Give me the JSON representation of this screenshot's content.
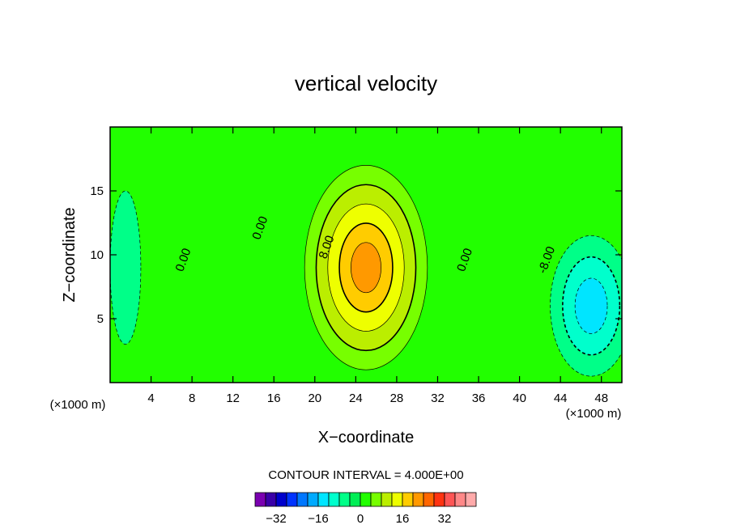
{
  "chart_data": {
    "type": "contour",
    "title": "vertical velocity",
    "xlabel": "X−coordinate",
    "ylabel": "Z−coordinate",
    "x_unit_left": "(×1000 m)",
    "x_unit_right": "(×1000 m)",
    "xlim": [
      0,
      50
    ],
    "ylim": [
      0,
      20
    ],
    "x_ticks": [
      4,
      8,
      12,
      16,
      20,
      24,
      28,
      32,
      36,
      40,
      44,
      48
    ],
    "x_tick_labels": [
      "4",
      "8",
      "12",
      "16",
      "20",
      "24",
      "28",
      "32",
      "36",
      "40",
      "44",
      "48"
    ],
    "y_ticks": [
      5,
      10,
      15
    ],
    "y_tick_labels": [
      "5",
      "10",
      "15"
    ],
    "background_value": 0,
    "features": [
      {
        "kind": "updraft",
        "x_center": 25,
        "z_center": 9,
        "x_halfwidth": 6,
        "z_halfwidth": 8,
        "peak": 20
      },
      {
        "kind": "downdraft",
        "x_center": 47,
        "z_center": 6,
        "x_halfwidth": 4,
        "z_halfwidth": 5.5,
        "peak": -12
      },
      {
        "kind": "weak_downdraft",
        "x_center": 1.5,
        "z_center": 9,
        "x_halfwidth": 1.5,
        "z_halfwidth": 6,
        "peak": -4
      }
    ],
    "contour_labels": [
      {
        "text": "0.00",
        "x": 7.5,
        "z": 9.5
      },
      {
        "text": "0.00",
        "x": 15,
        "z": 12
      },
      {
        "text": "8.00",
        "x": 21.5,
        "z": 10.5
      },
      {
        "text": "0.00",
        "x": 35,
        "z": 9.5
      },
      {
        "text": "-8.00",
        "x": 43,
        "z": 9.5
      }
    ],
    "contour_interval_label": "CONTOUR INTERVAL = 4.000E+00",
    "colorbar": {
      "colors": [
        "#7a00b0",
        "#3a00a8",
        "#0000cc",
        "#0033ff",
        "#0077ff",
        "#00aaff",
        "#00e5ff",
        "#00ffcc",
        "#00ff88",
        "#00ee55",
        "#22ff00",
        "#77ff00",
        "#bbee00",
        "#eeff00",
        "#ffcc00",
        "#ff9900",
        "#ff6600",
        "#ff3311",
        "#ff5555",
        "#ff8888",
        "#ffaaaa"
      ],
      "ticks": [
        "−32",
        "−16",
        "0",
        "16",
        "32"
      ]
    }
  }
}
